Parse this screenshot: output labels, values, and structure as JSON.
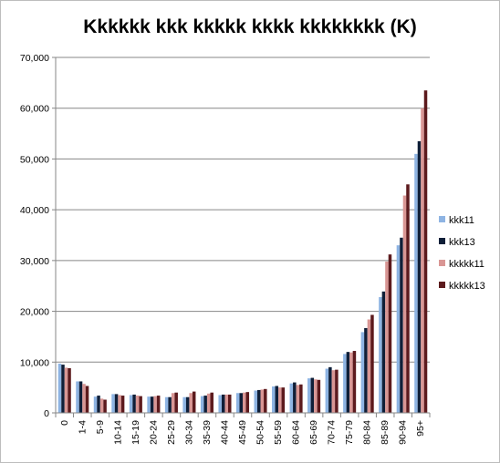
{
  "chart_data": {
    "type": "bar",
    "title": "Kkkkkk kkk kkkkk kkkk kkkkkkkk (K)",
    "xlabel": "",
    "ylabel": "",
    "ylim": [
      0,
      70000
    ],
    "yticks": [
      0,
      10000,
      20000,
      30000,
      40000,
      50000,
      60000,
      70000
    ],
    "ytick_labels": [
      "0",
      "10,000",
      "20,000",
      "30,000",
      "40,000",
      "50,000",
      "60,000",
      "70,000"
    ],
    "grid": "horizontal",
    "legend": "right",
    "categories": [
      "0",
      "1-4",
      "5-9",
      "10-14",
      "15-19",
      "20-24",
      "25-29",
      "30-34",
      "35-39",
      "40-44",
      "45-49",
      "50-54",
      "55-59",
      "60-64",
      "65-69",
      "70-74",
      "75-79",
      "80-84",
      "85-89",
      "90-94",
      "95+"
    ],
    "series": [
      {
        "name": "kkk11",
        "color": "#8eb4e3",
        "values": [
          9700,
          6200,
          3200,
          3700,
          3500,
          3200,
          3100,
          3100,
          3300,
          3500,
          3900,
          4400,
          5200,
          5800,
          6800,
          8700,
          11600,
          15900,
          22800,
          33000,
          51000
        ]
      },
      {
        "name": "kkk13",
        "color": "#0f1f38",
        "values": [
          9500,
          6200,
          3400,
          3700,
          3600,
          3200,
          3100,
          3100,
          3400,
          3600,
          3900,
          4500,
          5300,
          6000,
          6900,
          9000,
          12000,
          16700,
          23900,
          34500,
          53500
        ]
      },
      {
        "name": "kkkkk11",
        "color": "#d99694",
        "values": [
          8900,
          5700,
          2800,
          3500,
          3400,
          3300,
          3900,
          3900,
          3800,
          3600,
          4000,
          4600,
          5000,
          5500,
          6600,
          8400,
          11900,
          18400,
          29800,
          42800,
          60000
        ]
      },
      {
        "name": "kkkkk13",
        "color": "#5c1a1d",
        "values": [
          8800,
          5300,
          2600,
          3400,
          3300,
          3400,
          4000,
          4200,
          4000,
          3600,
          4100,
          4700,
          5000,
          5600,
          6500,
          8500,
          12200,
          19300,
          31200,
          45000,
          63500
        ]
      }
    ]
  }
}
